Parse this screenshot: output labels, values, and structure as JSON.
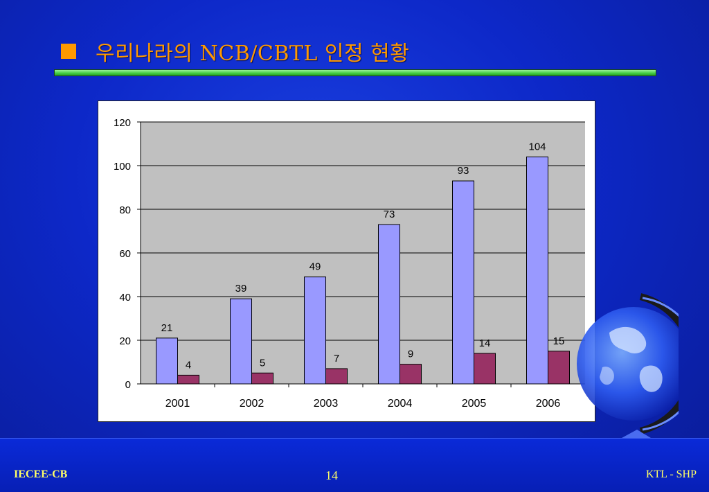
{
  "slide": {
    "title": "우리나라의 NCB/CBTL 인정 현황",
    "footer_left": "IECEE-CB",
    "page_number": "14",
    "footer_right": "KTL - SHP"
  },
  "colors": {
    "accent": "#ff9900",
    "series1": "#9999ff",
    "series2": "#993366",
    "plot_bg": "#c0c0c0"
  },
  "chart_data": {
    "type": "bar",
    "categories": [
      "2001",
      "2002",
      "2003",
      "2004",
      "2005",
      "2006"
    ],
    "series": [
      {
        "values": [
          21,
          39,
          49,
          73,
          93,
          104
        ]
      },
      {
        "values": [
          4,
          5,
          7,
          9,
          14,
          15
        ]
      }
    ],
    "ylim": [
      0,
      120
    ],
    "yticks": [
      0,
      20,
      40,
      60,
      80,
      100,
      120
    ],
    "grid": true,
    "legend": "none"
  }
}
